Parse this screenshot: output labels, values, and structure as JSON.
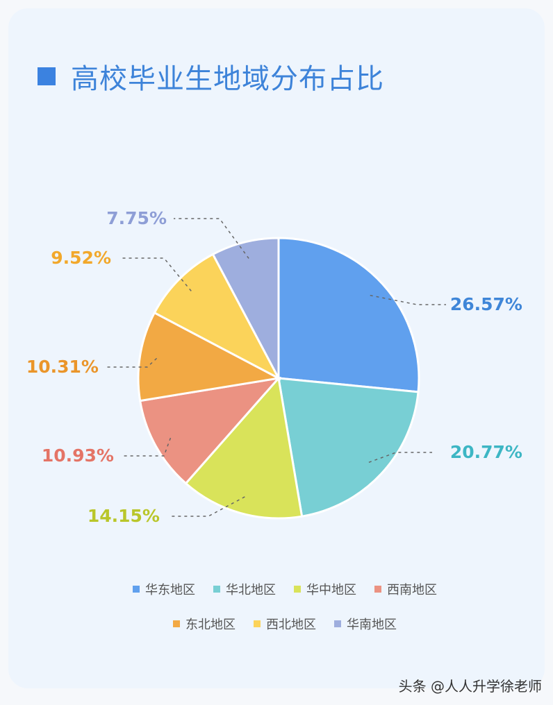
{
  "title": "高校毕业生地域分布占比",
  "watermark": "头条 @人人升学徐老师",
  "colors": {
    "title_square": "#3b82e0",
    "title_text": "#3d83d9"
  },
  "chart_data": {
    "type": "pie",
    "title": "高校毕业生地域分布占比",
    "legend_placement": "bottom",
    "slices": [
      {
        "name": "华东地区",
        "value": 26.57,
        "label": "26.57%",
        "color": "#60a0ee",
        "label_color": "#3f86d8"
      },
      {
        "name": "华北地区",
        "value": 20.77,
        "label": "20.77%",
        "color": "#78cfd4",
        "label_color": "#3db6c4"
      },
      {
        "name": "华中地区",
        "value": 14.15,
        "label": "14.15%",
        "color": "#d9e35a",
        "label_color": "#b9c62a"
      },
      {
        "name": "西南地区",
        "value": 10.93,
        "label": "10.93%",
        "color": "#eb9282",
        "label_color": "#e47466"
      },
      {
        "name": "东北地区",
        "value": 10.31,
        "label": "10.31%",
        "color": "#f2a944",
        "label_color": "#ea952a"
      },
      {
        "name": "西北地区",
        "value": 9.52,
        "label": "9.52%",
        "color": "#fbd35a",
        "label_color": "#f2a82b"
      },
      {
        "name": "华南地区",
        "value": 7.75,
        "label": "7.75%",
        "color": "#9eaede",
        "label_color": "#8e9ed6"
      }
    ]
  }
}
